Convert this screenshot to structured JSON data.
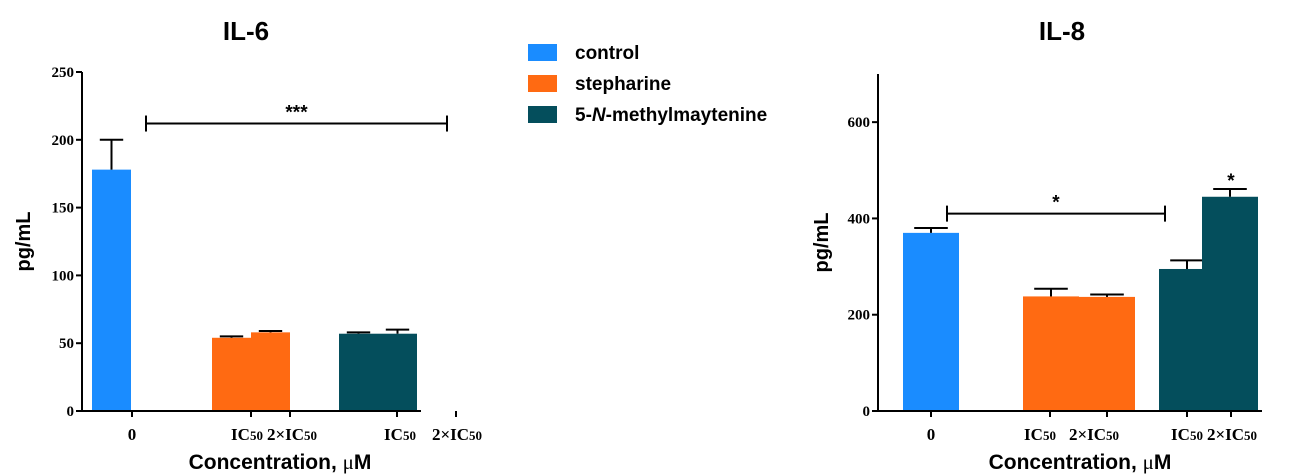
{
  "legend": [
    {
      "label": "control",
      "color": "#1a8cff"
    },
    {
      "label": "stepharine",
      "color": "#ff6a12"
    },
    {
      "label_parts": [
        "5-",
        "N",
        "-methylmaytenine"
      ],
      "label": "5-N-methylmaytenine",
      "color": "#044e5c"
    }
  ],
  "chart_data": [
    {
      "type": "bar",
      "title": "IL-6",
      "ylabel": "pg/mL",
      "xlabel": "Concentration, μM",
      "ylim": [
        0,
        250
      ],
      "yticks": [
        0,
        50,
        100,
        150,
        200,
        250
      ],
      "categories": [
        "0",
        "IC50",
        "2×IC50",
        "IC50",
        "2×IC50"
      ],
      "bars": [
        {
          "category": "0",
          "series": "control",
          "value": 178,
          "error": 22
        },
        {
          "category": "IC50",
          "series": "stepharine",
          "value": 54,
          "error": 1
        },
        {
          "category": "2×IC50",
          "series": "stepharine",
          "value": 58,
          "error": 1
        },
        {
          "category": "IC50",
          "series": "5-N-methylmaytenine",
          "value": 57,
          "error": 1
        },
        {
          "category": "2×IC50",
          "series": "5-N-methylmaytenine",
          "value": 57,
          "error": 3
        }
      ],
      "significance": [
        {
          "from": "0",
          "to": "2×IC50 (5-N-methylmaytenine)",
          "label": "***",
          "y": 212
        }
      ]
    },
    {
      "type": "bar",
      "title": "IL-8",
      "ylabel": "pg/mL",
      "xlabel": "Concentration, μM",
      "ylim": [
        0,
        700
      ],
      "yticks": [
        0,
        200,
        400,
        600
      ],
      "categories": [
        "0",
        "IC50",
        "2×IC50",
        "IC50",
        "2×IC50"
      ],
      "bars": [
        {
          "category": "0",
          "series": "control",
          "value": 370,
          "error": 10
        },
        {
          "category": "IC50",
          "series": "stepharine",
          "value": 238,
          "error": 16
        },
        {
          "category": "2×IC50",
          "series": "stepharine",
          "value": 237,
          "error": 5
        },
        {
          "category": "IC50",
          "series": "5-N-methylmaytenine",
          "value": 295,
          "error": 18
        },
        {
          "category": "2×IC50",
          "series": "5-N-methylmaytenine",
          "value": 445,
          "error": 16
        }
      ],
      "significance": [
        {
          "from": "0",
          "to": "IC50 (5-N-methylmaytenine)",
          "label": "*",
          "y": 410
        },
        {
          "on": "2×IC50 (5-N-methylmaytenine)",
          "label": "*",
          "y": 490
        }
      ]
    }
  ]
}
